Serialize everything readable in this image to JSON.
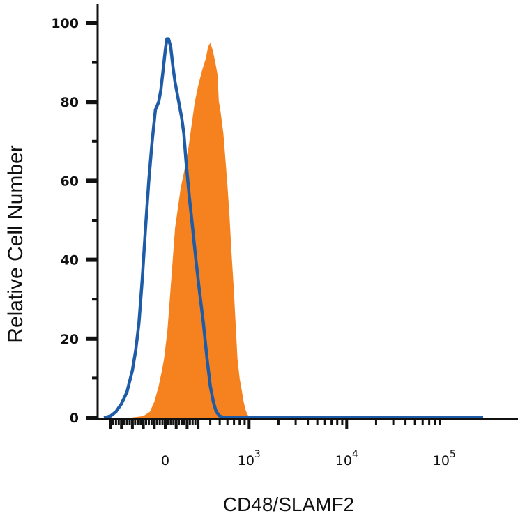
{
  "chart_data": {
    "type": "area",
    "title": "",
    "xlabel": "CD48/SLAMF2",
    "ylabel": "Relative Cell Number",
    "x_scale": "biexponential",
    "x_tick_labels": [
      {
        "value": 0,
        "base": "0",
        "exp": ""
      },
      {
        "value": 1000,
        "base": "10",
        "exp": "3"
      },
      {
        "value": 10000,
        "base": "10",
        "exp": "4"
      },
      {
        "value": 100000,
        "base": "10",
        "exp": "5"
      }
    ],
    "y_ticks": [
      0,
      20,
      40,
      60,
      80,
      100
    ],
    "ylim": [
      0,
      100
    ],
    "grid": false,
    "series": [
      {
        "style": "filled",
        "color": "#f5821f",
        "points": [
          [
            -310,
            0
          ],
          [
            -200,
            0.4
          ],
          [
            -140,
            1.5
          ],
          [
            -100,
            4
          ],
          [
            -60,
            8
          ],
          [
            -30,
            12
          ],
          [
            -10,
            15
          ],
          [
            20,
            22
          ],
          [
            50,
            33
          ],
          [
            90,
            48
          ],
          [
            140,
            58
          ],
          [
            170,
            62
          ],
          [
            210,
            68
          ],
          [
            240,
            74
          ],
          [
            270,
            80
          ],
          [
            300,
            84
          ],
          [
            330,
            88
          ],
          [
            360,
            91
          ],
          [
            380,
            94
          ],
          [
            400,
            95
          ],
          [
            425,
            93
          ],
          [
            450,
            90
          ],
          [
            475,
            87
          ],
          [
            490,
            80
          ],
          [
            500,
            79
          ],
          [
            520,
            76
          ],
          [
            545,
            72
          ],
          [
            570,
            66
          ],
          [
            600,
            59
          ],
          [
            630,
            51
          ],
          [
            660,
            42
          ],
          [
            695,
            33
          ],
          [
            730,
            23
          ],
          [
            760,
            15
          ],
          [
            800,
            10
          ],
          [
            840,
            7
          ],
          [
            880,
            4
          ],
          [
            920,
            2
          ],
          [
            960,
            0.8
          ],
          [
            1000,
            0.3
          ],
          [
            1040,
            0.1
          ],
          [
            1100,
            0
          ]
        ]
      },
      {
        "style": "outline",
        "color": "#1f5ca8",
        "points": [
          [
            -560,
            0
          ],
          [
            -500,
            0.4
          ],
          [
            -450,
            1.5
          ],
          [
            -400,
            3.5
          ],
          [
            -350,
            6.5
          ],
          [
            -300,
            12
          ],
          [
            -270,
            17
          ],
          [
            -240,
            24
          ],
          [
            -210,
            35
          ],
          [
            -180,
            48
          ],
          [
            -150,
            60
          ],
          [
            -120,
            70
          ],
          [
            -90,
            78
          ],
          [
            -60,
            80
          ],
          [
            -40,
            83
          ],
          [
            -20,
            88
          ],
          [
            0,
            93
          ],
          [
            15,
            96
          ],
          [
            30,
            96
          ],
          [
            50,
            94
          ],
          [
            70,
            89
          ],
          [
            90,
            85
          ],
          [
            110,
            82
          ],
          [
            130,
            79
          ],
          [
            150,
            76
          ],
          [
            170,
            72
          ],
          [
            190,
            65
          ],
          [
            220,
            56
          ],
          [
            250,
            48
          ],
          [
            280,
            40
          ],
          [
            310,
            32
          ],
          [
            340,
            24
          ],
          [
            370,
            15
          ],
          [
            400,
            8
          ],
          [
            430,
            4
          ],
          [
            460,
            1.5
          ],
          [
            500,
            0.4
          ],
          [
            560,
            0
          ],
          [
            100000,
            0
          ],
          [
            250000,
            0
          ]
        ]
      }
    ]
  }
}
